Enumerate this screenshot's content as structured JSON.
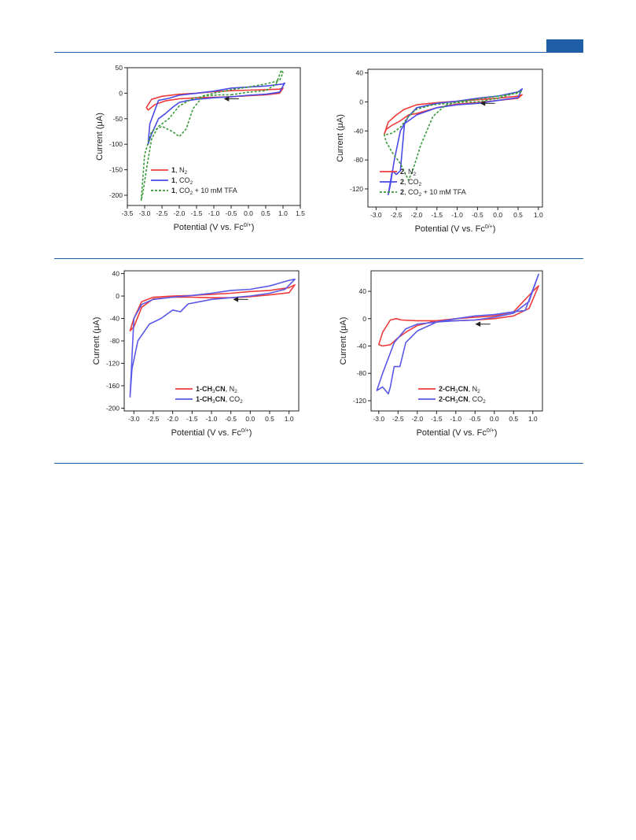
{
  "header": {
    "accent_color": "#1f5fa8"
  },
  "chart_data": [
    {
      "id": "c1",
      "type": "line",
      "xlabel": "Potential (V vs. Fc",
      "xlabel_sup": "0/+",
      "xlabel_end": ")",
      "ylabel": "Current (μA)",
      "xlim": [
        -3.5,
        1.5
      ],
      "ylim": [
        -220,
        50
      ],
      "xticks": [
        "-3.5",
        "-3.0",
        "-2.5",
        "-2.0",
        "-1.5",
        "-1.0",
        "-0.5",
        "0.0",
        "0.5",
        "1.0",
        "1.5"
      ],
      "yticks": [
        "50",
        "0",
        "-50",
        "-100",
        "-150",
        "-200"
      ],
      "legend_position": "bottom-right",
      "scan_arrow": {
        "x": -0.55,
        "y": -11
      },
      "series": [
        {
          "name": "N",
          "legend": {
            "bold": "1",
            "text": ", N",
            "sub": "2",
            "after": ""
          },
          "color": "#ee3b3b",
          "dash": "solid",
          "x": [
            -0.5,
            0.0,
            0.5,
            0.9,
            1.0,
            0.9,
            0.5,
            0.0,
            -0.5,
            -1.0,
            -1.5,
            -2.0,
            -2.5,
            -2.8,
            -2.95,
            -2.9,
            -2.7,
            -2.4,
            -2.0,
            -1.5,
            -1.0,
            -0.5
          ],
          "y": [
            -7,
            -5,
            -3,
            0,
            10,
            8,
            7,
            6,
            5,
            3,
            0,
            -2,
            -6,
            -12,
            -28,
            -33,
            -22,
            -15,
            -11,
            -9,
            -8,
            -7
          ]
        },
        {
          "name": "CO",
          "legend": {
            "bold": "1",
            "text": ", CO",
            "sub": "2",
            "after": ""
          },
          "color": "#4a4ae8",
          "dash": "solid",
          "x": [
            -0.5,
            0.0,
            0.5,
            0.9,
            1.05,
            1.0,
            0.5,
            0.0,
            -0.5,
            -1.0,
            -1.5,
            -2.0,
            -2.3,
            -2.6,
            -2.85,
            -2.9,
            -2.8,
            -2.6,
            -2.4,
            -2.2,
            -2.0,
            -1.8,
            -1.5,
            -1.0,
            -0.5
          ],
          "y": [
            -7,
            -4,
            -2,
            2,
            20,
            18,
            14,
            12,
            10,
            4,
            0,
            -4,
            -10,
            -14,
            -60,
            -100,
            -80,
            -50,
            -40,
            -28,
            -18,
            -15,
            -12,
            -9,
            -7
          ]
        },
        {
          "name": "TFA",
          "legend": {
            "bold": "1",
            "text": ", CO",
            "sub": "2",
            "after": " + 10 mM TFA"
          },
          "color": "#3a9a3a",
          "dash": "3 2",
          "x": [
            -0.5,
            0.0,
            0.5,
            0.8,
            0.95,
            1.0,
            0.9,
            0.5,
            0.0,
            -0.5,
            -1.0,
            -1.3,
            -1.6,
            -1.8,
            -2.0,
            -2.2,
            -2.5,
            -2.8,
            -3.0,
            -3.1,
            -3.05,
            -2.95,
            -2.8,
            -2.6,
            -2.3,
            -2.0,
            -1.6,
            -1.2,
            -0.8,
            -0.5
          ],
          "y": [
            -3,
            2,
            5,
            18,
            45,
            40,
            25,
            18,
            12,
            7,
            0,
            -5,
            -30,
            -70,
            -85,
            -75,
            -65,
            -75,
            -120,
            -210,
            -195,
            -150,
            -90,
            -65,
            -50,
            -25,
            -10,
            -5,
            -3,
            -3
          ]
        }
      ]
    },
    {
      "id": "c2",
      "type": "line",
      "xlabel": "Potential (V vs. Fc",
      "xlabel_sup": "0/+",
      "xlabel_end": ")",
      "ylabel": "Current (μA)",
      "xlim": [
        -3.2,
        1.1
      ],
      "ylim": [
        -145,
        45
      ],
      "xticks": [
        "-3.0",
        "-2.5",
        "-2.0",
        "-1.5",
        "-1.0",
        "-0.5",
        "0.0",
        "0.5",
        "1.0"
      ],
      "yticks": [
        "40",
        "0",
        "-40",
        "-80",
        "-120"
      ],
      "legend_position": "bottom-right",
      "scan_arrow": {
        "x": -0.3,
        "y": -2
      },
      "series": [
        {
          "name": "N",
          "legend": {
            "bold": "2",
            "text": ", N",
            "sub": "2",
            "after": ""
          },
          "color": "#ee3b3b",
          "dash": "solid",
          "x": [
            -0.5,
            0.0,
            0.5,
            0.6,
            0.5,
            0.0,
            -0.5,
            -1.0,
            -1.5,
            -2.0,
            -2.3,
            -2.5,
            -2.7,
            -2.8,
            -2.75,
            -2.6,
            -2.4,
            -2.3,
            -2.2,
            -2.0,
            -1.5,
            -1.0,
            -0.5
          ],
          "y": [
            -1,
            2,
            5,
            10,
            8,
            5,
            3,
            1,
            -1,
            -4,
            -10,
            -18,
            -28,
            -45,
            -38,
            -32,
            -26,
            -22,
            -18,
            -16,
            -8,
            -3,
            -1
          ]
        },
        {
          "name": "CO",
          "legend": {
            "bold": "2",
            "text": ", CO",
            "sub": "2",
            "after": ""
          },
          "color": "#4a4ae8",
          "dash": "solid",
          "x": [
            -0.5,
            0.0,
            0.5,
            0.6,
            0.5,
            0.0,
            -0.5,
            -1.0,
            -1.5,
            -2.0,
            -2.2,
            -2.4,
            -2.55,
            -2.65,
            -2.7,
            -2.6,
            -2.5,
            -2.4,
            -2.3,
            -2.0,
            -1.5,
            -1.0,
            -0.5
          ],
          "y": [
            -2,
            2,
            6,
            18,
            14,
            8,
            5,
            1,
            -2,
            -8,
            -20,
            -40,
            -80,
            -115,
            -128,
            -95,
            -100,
            -95,
            -30,
            -18,
            -8,
            -4,
            -2
          ]
        },
        {
          "name": "TFA",
          "legend": {
            "bold": "2",
            "text": ", CO",
            "sub": "2",
            "after": " + 10 mM TFA"
          },
          "color": "#3a9a3a",
          "dash": "3 2",
          "x": [
            -0.5,
            0.0,
            0.3,
            0.6,
            0.5,
            0.0,
            -0.5,
            -1.0,
            -1.3,
            -1.6,
            -1.9,
            -2.1,
            -2.2,
            -2.4,
            -2.6,
            -2.75,
            -2.8,
            -2.75,
            -2.6,
            -2.4,
            -2.2,
            -2.0,
            -1.6,
            -1.2,
            -0.8,
            -0.5
          ],
          "y": [
            0,
            5,
            10,
            15,
            12,
            8,
            4,
            0,
            -5,
            -20,
            -60,
            -95,
            -108,
            -85,
            -70,
            -55,
            -45,
            -45,
            -43,
            -35,
            -20,
            -10,
            -4,
            -2,
            0,
            0
          ]
        }
      ]
    },
    {
      "id": "c3",
      "type": "line",
      "xlabel": "Potential (V vs. Fc",
      "xlabel_sup": "0/+",
      "xlabel_end": ")",
      "ylabel": "Current (μA)",
      "xlim": [
        -3.25,
        1.25
      ],
      "ylim": [
        -205,
        45
      ],
      "xticks": [
        "-3.0",
        "-2.5",
        "-2.0",
        "-1.5",
        "-1.0",
        "-0.5",
        "0.0",
        "0.5",
        "1.0"
      ],
      "yticks": [
        "40",
        "0",
        "-40",
        "-80",
        "-120",
        "-160",
        "-200"
      ],
      "legend_position": "bottom-right",
      "scan_arrow": {
        "x": -0.3,
        "y": -6
      },
      "series": [
        {
          "name": "N",
          "legend": {
            "bold": "1-CH",
            "sub1": "3",
            "bold2": "CN",
            "text": ", N",
            "sub": "2",
            "after": ""
          },
          "color": "#ee3b3b",
          "dash": "solid",
          "x": [
            -0.5,
            0.0,
            0.5,
            1.0,
            1.15,
            1.0,
            0.5,
            0.0,
            -0.5,
            -1.0,
            -1.5,
            -2.0,
            -2.5,
            -2.8,
            -3.0,
            -3.1,
            -3.0,
            -2.8,
            -2.5,
            -2.0,
            -1.5,
            -1.0,
            -0.5
          ],
          "y": [
            -3,
            -1,
            2,
            6,
            20,
            15,
            10,
            8,
            5,
            3,
            1,
            0,
            -2,
            -10,
            -40,
            -62,
            -55,
            -20,
            -5,
            -2,
            -2,
            -3,
            -3
          ]
        },
        {
          "name": "CO",
          "legend": {
            "bold": "1-CH",
            "sub1": "3",
            "bold2": "CN",
            "text": ", CO",
            "sub": "2",
            "after": ""
          },
          "color": "#5a5ae8",
          "dash": "solid",
          "x": [
            -0.5,
            0.0,
            0.5,
            0.9,
            1.15,
            1.0,
            0.5,
            0.0,
            -0.5,
            -1.0,
            -1.5,
            -2.0,
            -2.5,
            -2.8,
            -3.0,
            -3.1,
            -3.05,
            -2.9,
            -2.6,
            -2.3,
            -2.0,
            -1.8,
            -1.6,
            -1.3,
            -1.0,
            -0.5
          ],
          "y": [
            -3,
            0,
            5,
            12,
            30,
            28,
            18,
            12,
            10,
            5,
            1,
            -2,
            -6,
            -15,
            -40,
            -180,
            -130,
            -80,
            -50,
            -40,
            -25,
            -28,
            -14,
            -10,
            -6,
            -3
          ]
        }
      ]
    },
    {
      "id": "c4",
      "type": "line",
      "xlabel": "Potential (V vs. Fc",
      "xlabel_sup": "0/+",
      "xlabel_end": ")",
      "ylabel": "Current (μA)",
      "xlim": [
        -3.2,
        1.25
      ],
      "ylim": [
        -135,
        70
      ],
      "xticks": [
        "-3.0",
        "-2.5",
        "-2.0",
        "-1.5",
        "-1.0",
        "-0.5",
        "0.0",
        "0.5",
        "1.0"
      ],
      "yticks": [
        "40",
        "0",
        "-40",
        "-80",
        "-120"
      ],
      "legend_position": "bottom-right",
      "scan_arrow": {
        "x": -0.35,
        "y": -8
      },
      "series": [
        {
          "name": "N",
          "legend": {
            "bold": "2-CH",
            "sub1": "3",
            "bold2": "CN",
            "text": ", N",
            "sub": "2",
            "after": ""
          },
          "color": "#ee3b3b",
          "dash": "solid",
          "x": [
            -0.5,
            0.0,
            0.5,
            0.9,
            1.15,
            1.0,
            0.5,
            0.0,
            -0.5,
            -1.0,
            -1.5,
            -2.0,
            -2.3,
            -2.5,
            -2.7,
            -2.9,
            -3.0,
            -2.9,
            -2.7,
            -2.55,
            -2.4,
            -2.0,
            -1.5,
            -1.0,
            -0.5
          ],
          "y": [
            -2,
            0,
            4,
            15,
            48,
            40,
            10,
            4,
            2,
            0,
            -3,
            -10,
            -20,
            -28,
            -38,
            -40,
            -38,
            -20,
            -2,
            0,
            -2,
            -3,
            -3,
            -3,
            -2
          ]
        },
        {
          "name": "CO",
          "legend": {
            "bold": "2-CH",
            "sub1": "3",
            "bold2": "CN",
            "text": ", CO",
            "sub": "2",
            "after": ""
          },
          "color": "#5a5ae8",
          "dash": "solid",
          "x": [
            -0.5,
            0.0,
            0.5,
            0.9,
            1.15,
            1.05,
            0.8,
            0.5,
            0.0,
            -0.5,
            -1.0,
            -1.5,
            -2.0,
            -2.3,
            -2.45,
            -2.6,
            -2.7,
            -2.75,
            -2.9,
            -3.05,
            -2.9,
            -2.6,
            -2.3,
            -2.0,
            -1.5,
            -1.0,
            -0.5
          ],
          "y": [
            -2,
            2,
            8,
            25,
            65,
            50,
            12,
            10,
            6,
            4,
            0,
            -5,
            -18,
            -35,
            -70,
            -70,
            -100,
            -110,
            -100,
            -105,
            -80,
            -35,
            -15,
            -8,
            -5,
            -3,
            -2
          ]
        }
      ]
    }
  ]
}
